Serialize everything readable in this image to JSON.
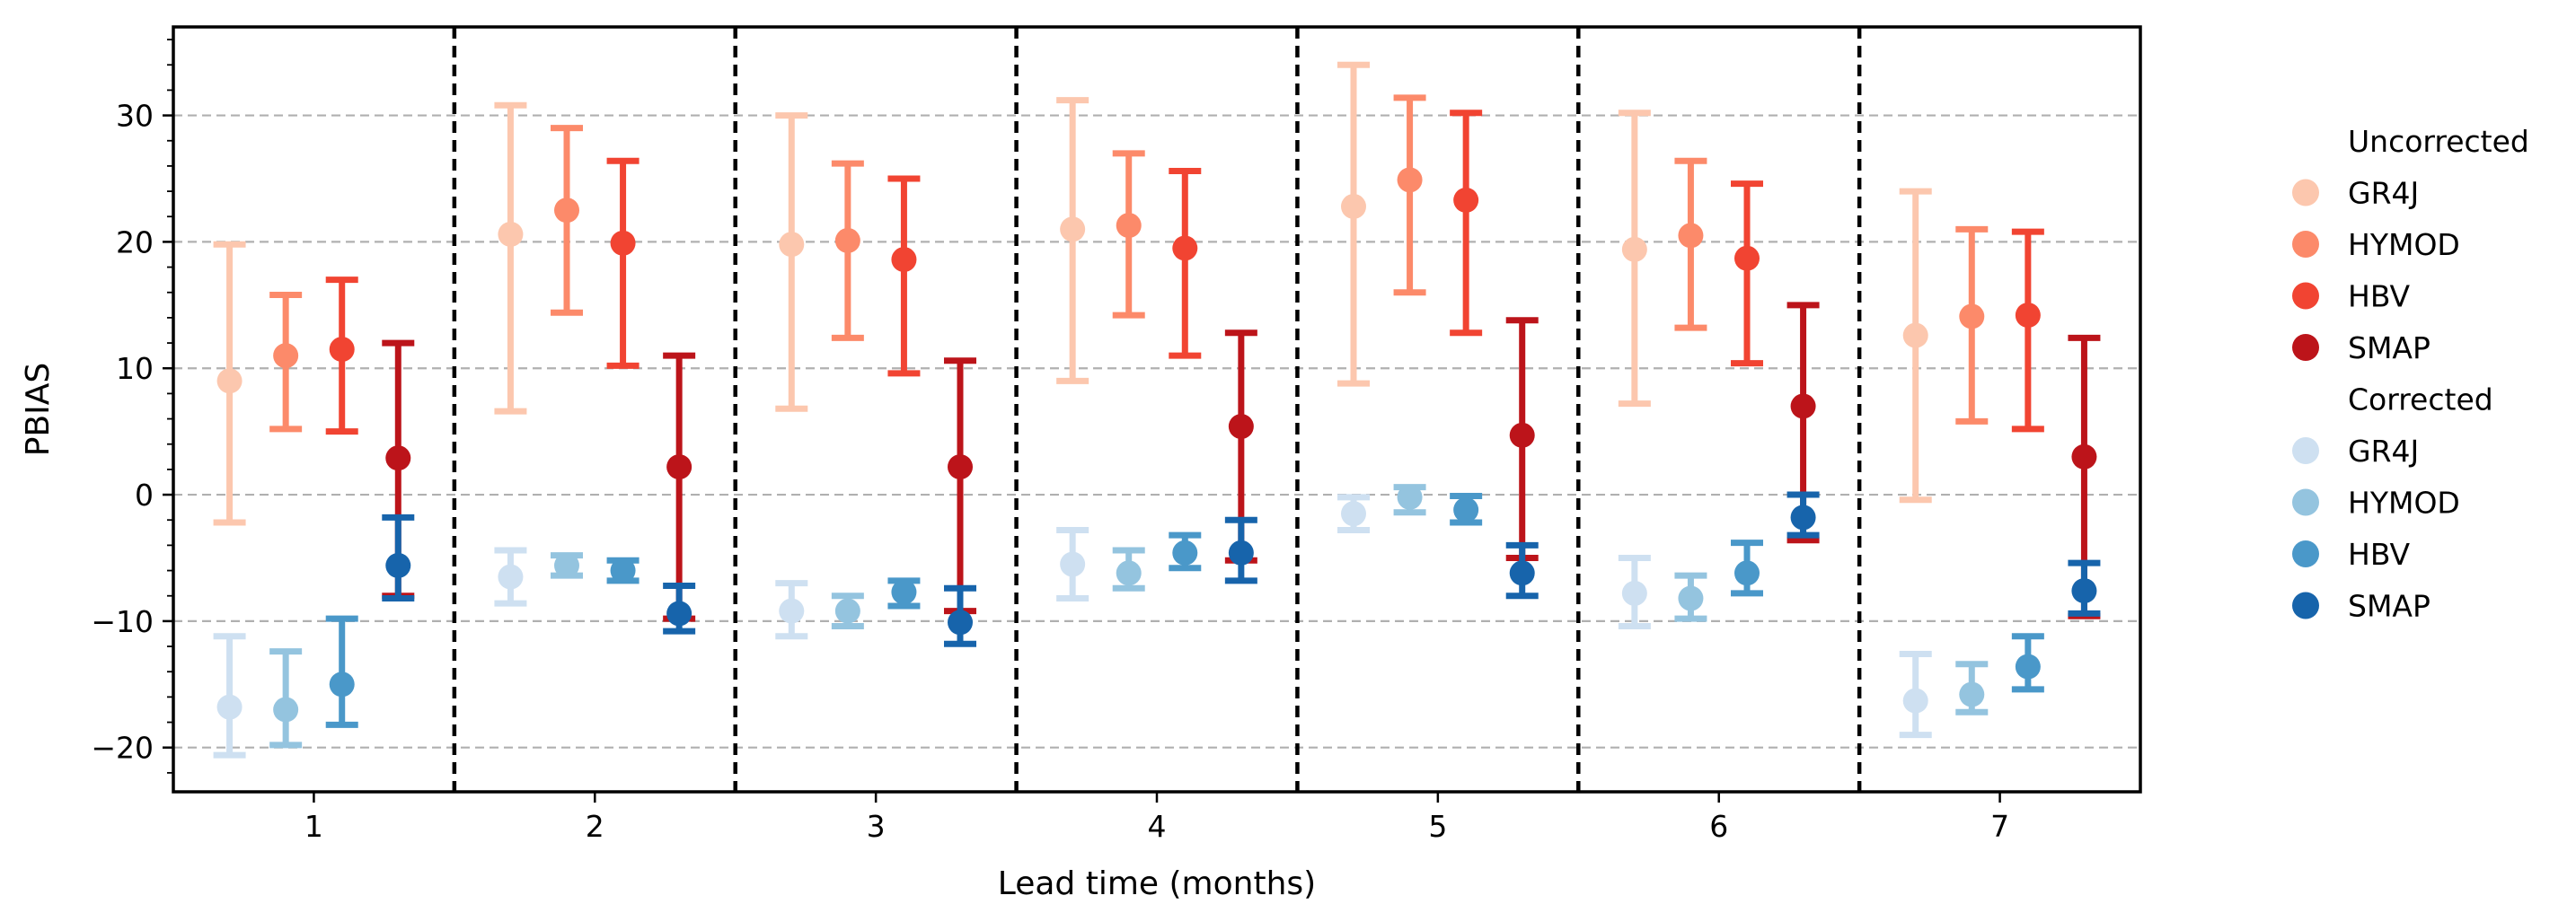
{
  "chart_data": {
    "type": "errorbar",
    "xlabel": "Lead time (months)",
    "ylabel": "PBIAS",
    "ylim": [
      -23.5,
      37
    ],
    "yticks": [
      -20,
      -10,
      0,
      10,
      20,
      30
    ],
    "categories": [
      "1",
      "2",
      "3",
      "4",
      "5",
      "6",
      "7"
    ],
    "grid": "horizontal dashed at major y ticks",
    "category_separators": "vertical dashed black lines between lead times",
    "legend": {
      "placement": "right, outside plot",
      "groups": [
        {
          "title": "Uncorrected",
          "entries": [
            "GR4J",
            "HYMOD",
            "HBV",
            "SMAP"
          ]
        },
        {
          "title": "Corrected",
          "entries": [
            "GR4J",
            "HYMOD",
            "HBV",
            "SMAP"
          ]
        }
      ]
    },
    "series": [
      {
        "group": "Uncorrected",
        "name": "GR4J",
        "color": "#fcc7ae",
        "offset": -0.3,
        "mean": [
          9.0,
          20.6,
          19.8,
          21.0,
          22.8,
          19.4,
          12.6
        ],
        "lower": [
          -2.2,
          6.6,
          6.8,
          9.0,
          8.8,
          7.2,
          -0.4
        ],
        "upper": [
          19.8,
          30.8,
          30.0,
          31.2,
          34.0,
          30.2,
          24.0
        ]
      },
      {
        "group": "Uncorrected",
        "name": "HYMOD",
        "color": "#fc8a6a",
        "offset": -0.1,
        "mean": [
          11.0,
          22.5,
          20.1,
          21.3,
          24.9,
          20.5,
          14.1
        ],
        "lower": [
          5.2,
          14.4,
          12.4,
          14.2,
          16.0,
          13.2,
          5.8
        ],
        "upper": [
          15.8,
          29.0,
          26.2,
          27.0,
          31.4,
          26.4,
          21.0
        ]
      },
      {
        "group": "Uncorrected",
        "name": "HBV",
        "color": "#f14432",
        "offset": 0.1,
        "mean": [
          11.5,
          19.9,
          18.6,
          19.5,
          23.3,
          18.7,
          14.2
        ],
        "lower": [
          5.0,
          10.2,
          9.6,
          11.0,
          12.8,
          10.4,
          5.2
        ],
        "upper": [
          17.0,
          26.4,
          25.0,
          25.6,
          30.2,
          24.6,
          20.8
        ]
      },
      {
        "group": "Uncorrected",
        "name": "SMAP",
        "color": "#bc141a",
        "offset": 0.3,
        "mean": [
          2.9,
          2.2,
          2.2,
          5.4,
          4.7,
          7.0,
          3.0
        ],
        "lower": [
          -8.0,
          -9.8,
          -9.2,
          -5.2,
          -5.0,
          -3.6,
          -9.6
        ],
        "upper": [
          12.0,
          11.0,
          10.6,
          12.8,
          13.8,
          15.0,
          12.4
        ]
      },
      {
        "group": "Corrected",
        "name": "GR4J",
        "color": "#cee0f1",
        "offset": -0.3,
        "mean": [
          -16.8,
          -6.5,
          -9.2,
          -5.5,
          -1.5,
          -7.8,
          -16.3
        ],
        "lower": [
          -20.6,
          -8.6,
          -11.2,
          -8.2,
          -2.8,
          -10.4,
          -19.0
        ],
        "upper": [
          -11.2,
          -4.4,
          -7.0,
          -2.8,
          -0.2,
          -5.0,
          -12.6
        ]
      },
      {
        "group": "Corrected",
        "name": "HYMOD",
        "color": "#94c4df",
        "offset": -0.1,
        "mean": [
          -17.0,
          -5.6,
          -9.2,
          -6.2,
          -0.2,
          -8.2,
          -15.8
        ],
        "lower": [
          -19.8,
          -6.4,
          -10.4,
          -7.4,
          -1.4,
          -9.8,
          -17.2
        ],
        "upper": [
          -12.4,
          -4.8,
          -8.0,
          -4.4,
          0.6,
          -6.4,
          -13.4
        ]
      },
      {
        "group": "Corrected",
        "name": "HBV",
        "color": "#4a98c9",
        "offset": 0.1,
        "mean": [
          -15.0,
          -6.0,
          -7.7,
          -4.6,
          -1.2,
          -6.2,
          -13.6
        ],
        "lower": [
          -18.2,
          -6.8,
          -8.8,
          -5.8,
          -2.2,
          -7.8,
          -15.4
        ],
        "upper": [
          -9.8,
          -5.2,
          -6.8,
          -3.2,
          -0.1,
          -3.8,
          -11.2
        ]
      },
      {
        "group": "Corrected",
        "name": "SMAP",
        "color": "#1764ab",
        "offset": 0.3,
        "mean": [
          -5.6,
          -9.4,
          -10.1,
          -4.6,
          -6.2,
          -1.8,
          -7.6
        ],
        "lower": [
          -8.2,
          -10.8,
          -11.8,
          -6.8,
          -8.0,
          -3.2,
          -9.4
        ],
        "upper": [
          -1.8,
          -7.2,
          -7.4,
          -2.0,
          -4.0,
          0.0,
          -5.4
        ]
      }
    ]
  }
}
